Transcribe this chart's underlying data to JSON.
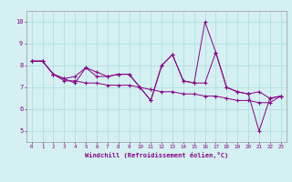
{
  "xlabel": "Windchill (Refroidissement éolien,°C)",
  "bg_color": "#d4f0f0",
  "grid_color": "#aadddd",
  "line_color": "#880088",
  "xlim": [
    -0.5,
    23.5
  ],
  "ylim": [
    4.5,
    10.5
  ],
  "xticks": [
    0,
    1,
    2,
    3,
    4,
    5,
    6,
    7,
    8,
    9,
    10,
    11,
    12,
    13,
    14,
    15,
    16,
    17,
    18,
    19,
    20,
    21,
    22,
    23
  ],
  "yticks": [
    5,
    6,
    7,
    8,
    9,
    10
  ],
  "series": [
    [
      8.2,
      8.2,
      7.6,
      7.4,
      7.2,
      7.9,
      7.5,
      7.5,
      7.6,
      7.6,
      7.0,
      6.4,
      8.0,
      8.5,
      7.3,
      7.2,
      10.0,
      8.6,
      7.0,
      6.8,
      6.7,
      5.0,
      6.5,
      6.6
    ],
    [
      8.2,
      8.2,
      7.6,
      7.4,
      7.5,
      7.9,
      7.7,
      7.5,
      7.6,
      7.6,
      7.0,
      6.4,
      8.0,
      8.5,
      7.3,
      7.2,
      7.2,
      8.6,
      7.0,
      6.8,
      6.7,
      6.8,
      6.5,
      6.6
    ],
    [
      8.2,
      8.2,
      7.6,
      7.3,
      7.3,
      7.2,
      7.2,
      7.1,
      7.1,
      7.1,
      7.0,
      6.9,
      6.8,
      6.8,
      6.7,
      6.7,
      6.6,
      6.6,
      6.5,
      6.4,
      6.4,
      6.3,
      6.3,
      6.6
    ]
  ]
}
